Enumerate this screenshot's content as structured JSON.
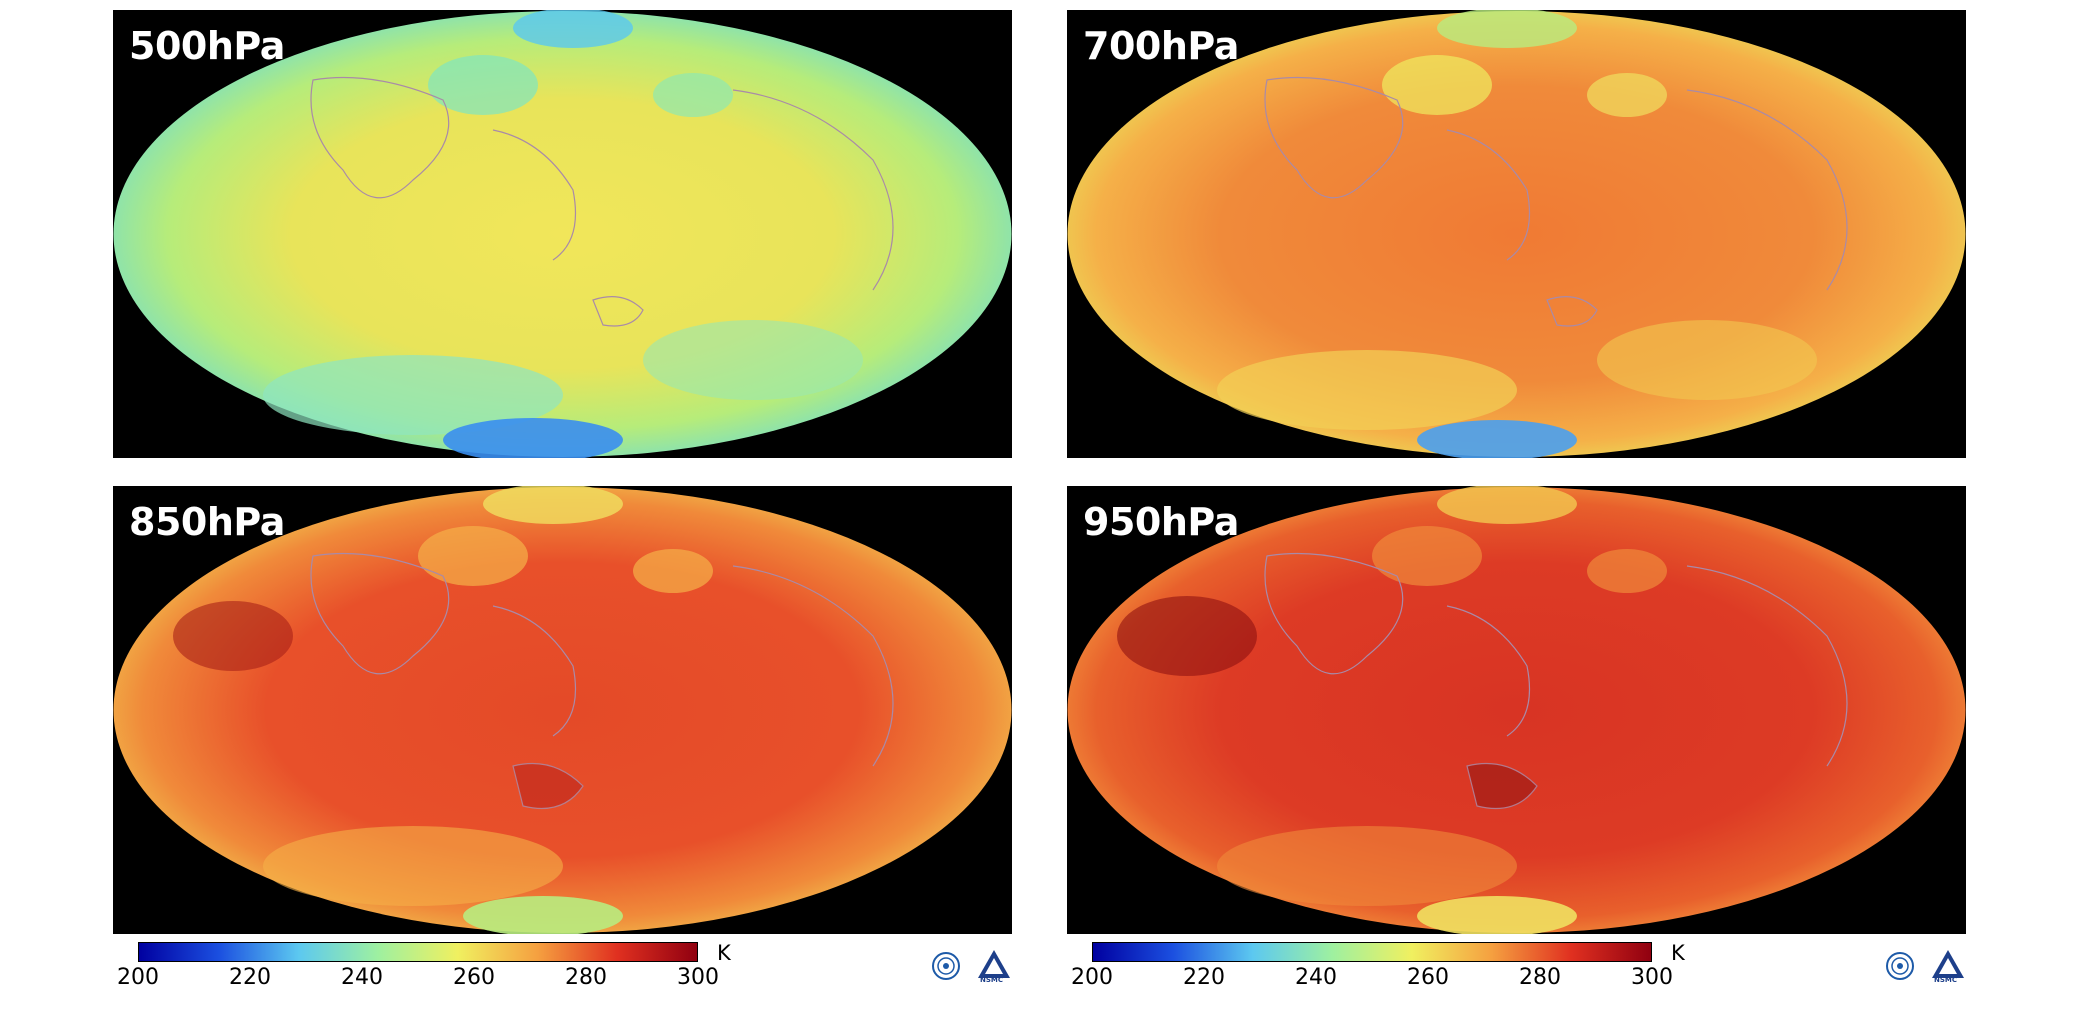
{
  "panels": [
    {
      "label": "500hPa",
      "mean_color": "#e9e356"
    },
    {
      "label": "700hPa",
      "mean_color": "#f08a3a"
    },
    {
      "label": "850hPa",
      "mean_color": "#e8502a"
    },
    {
      "label": "950hPa",
      "mean_color": "#dd3b25"
    }
  ],
  "colorbar": {
    "unit": "K",
    "ticks": [
      "200",
      "220",
      "240",
      "260",
      "280",
      "300"
    ],
    "range": [
      200,
      300
    ],
    "colors": [
      "#0000a0",
      "#1b4fe0",
      "#5cc8f0",
      "#9ef0a0",
      "#f0f060",
      "#f5a040",
      "#e03020",
      "#900010"
    ]
  },
  "logos": [
    {
      "name": "cma-emblem"
    },
    {
      "name": "nsmc-logo",
      "text": "NSMC"
    }
  ]
}
